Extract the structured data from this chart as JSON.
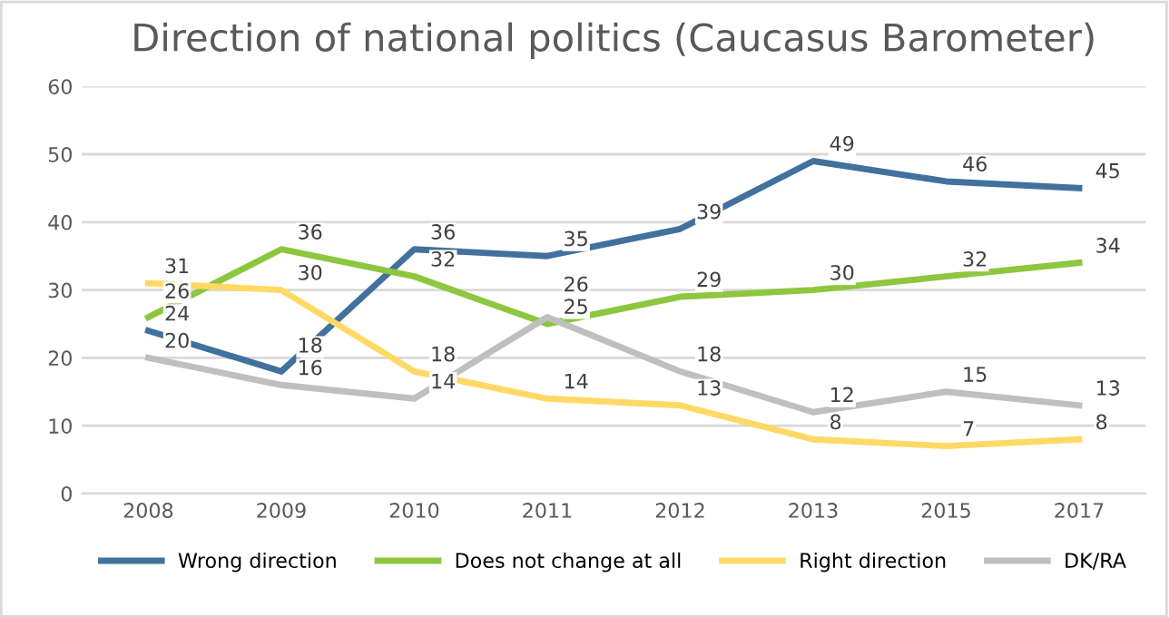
{
  "chart_data": {
    "type": "line",
    "title": "Direction of national politics (Caucasus Barometer)",
    "categories": [
      "2008",
      "2009",
      "2010",
      "2011",
      "2012",
      "2013",
      "2015",
      "2017"
    ],
    "series": [
      {
        "name": "Wrong direction",
        "color": "#41719c",
        "values": [
          24,
          18,
          36,
          35,
          39,
          49,
          46,
          45
        ]
      },
      {
        "name": "Does not change at all",
        "color": "#8dc63f",
        "values": [
          26,
          36,
          32,
          25,
          29,
          30,
          32,
          34
        ]
      },
      {
        "name": "Right direction",
        "color": "#ffd966",
        "values": [
          31,
          30,
          18,
          14,
          13,
          8,
          7,
          8
        ]
      },
      {
        "name": "DK/RA",
        "color": "#bfbfbf",
        "values": [
          20,
          16,
          14,
          26,
          18,
          12,
          15,
          13
        ]
      }
    ],
    "ylim": [
      0,
      60
    ],
    "yticks": [
      0,
      10,
      20,
      30,
      40,
      50,
      60
    ],
    "grid": "y",
    "legend": "bottom",
    "marker": "none",
    "line_style": "solid",
    "data_labels": true
  }
}
